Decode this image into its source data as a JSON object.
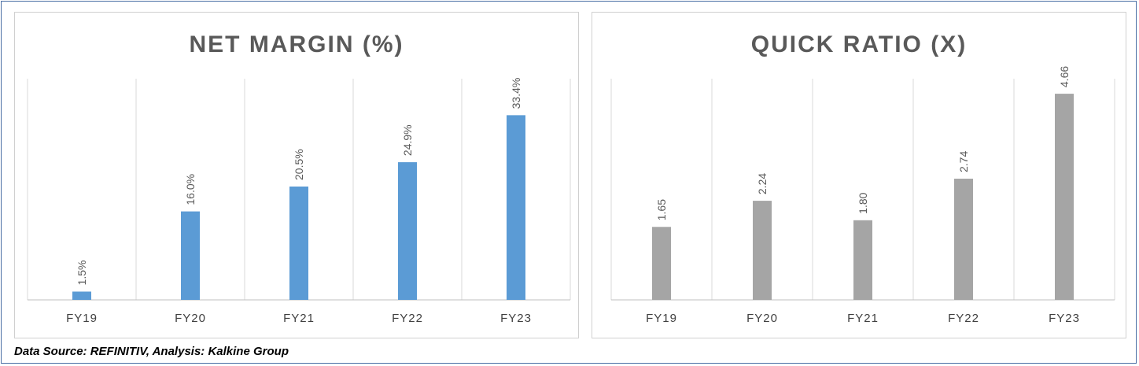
{
  "chart_data": [
    {
      "type": "bar",
      "title": "NET MARGIN (%)",
      "categories": [
        "FY19",
        "FY20",
        "FY21",
        "FY22",
        "FY23"
      ],
      "values": [
        1.5,
        16.0,
        20.5,
        24.9,
        33.4
      ],
      "data_labels": [
        "1.5%",
        "16.0%",
        "20.5%",
        "24.9%",
        "33.4%"
      ],
      "ylim": [
        0,
        40
      ],
      "grid": "vertical",
      "bar_color": "#5b9bd5"
    },
    {
      "type": "bar",
      "title": "QUICK RATIO (X)",
      "categories": [
        "FY19",
        "FY20",
        "FY21",
        "FY22",
        "FY23"
      ],
      "values": [
        1.65,
        2.24,
        1.8,
        2.74,
        4.66
      ],
      "data_labels": [
        "1.65",
        "2.24",
        "1.80",
        "2.74",
        "4.66"
      ],
      "ylim": [
        0,
        5
      ],
      "grid": "vertical",
      "bar_color": "#a5a5a5"
    }
  ],
  "footer": {
    "source": "Data Source: REFINITIV, Analysis: Kalkine Group"
  }
}
